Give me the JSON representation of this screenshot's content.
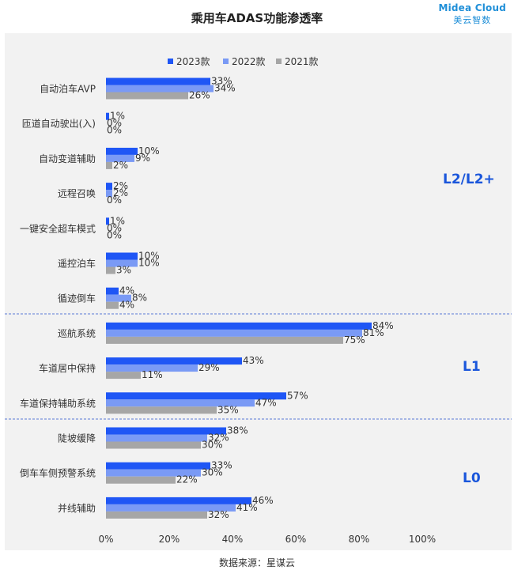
{
  "title": "乘用车ADAS功能渗透率",
  "logo": {
    "line1": "Midea Cloud",
    "line2": "美云智数"
  },
  "source": "数据来源：星谋云",
  "colors": {
    "2023款": "#1f56f5",
    "2022款": "#7a9af5",
    "2021款": "#a6a6a6",
    "group_label": "#1a56db",
    "divider": "#5b7bd5"
  },
  "chart_data": {
    "type": "bar",
    "orientation": "horizontal",
    "categories": [
      "自动泊车AVP",
      "匝道自动驶出(入)",
      "自动变道辅助",
      "远程召唤",
      "一键安全超车模式",
      "遥控泊车",
      "循迹倒车",
      "巡航系统",
      "车道居中保持",
      "车道保持辅助系统",
      "陡坡缓降",
      "倒车车侧预警系统",
      "并线辅助"
    ],
    "series": [
      {
        "name": "2023款",
        "values": [
          33,
          1,
          10,
          2,
          1,
          10,
          4,
          84,
          43,
          57,
          38,
          33,
          46
        ]
      },
      {
        "name": "2022款",
        "values": [
          34,
          0,
          9,
          2,
          0,
          10,
          8,
          81,
          29,
          47,
          32,
          30,
          41
        ]
      },
      {
        "name": "2021款",
        "values": [
          26,
          0,
          2,
          0,
          0,
          3,
          4,
          75,
          11,
          35,
          30,
          22,
          32
        ]
      }
    ],
    "xlim": [
      0,
      100
    ],
    "xticks": [
      "0%",
      "20%",
      "40%",
      "60%",
      "80%",
      "100%"
    ],
    "value_suffix": "%",
    "legend_position": "top-right",
    "groups": [
      {
        "label": "L2/L2+",
        "categories": 7
      },
      {
        "label": "L1",
        "categories": 3
      },
      {
        "label": "L0",
        "categories": 3
      }
    ]
  }
}
